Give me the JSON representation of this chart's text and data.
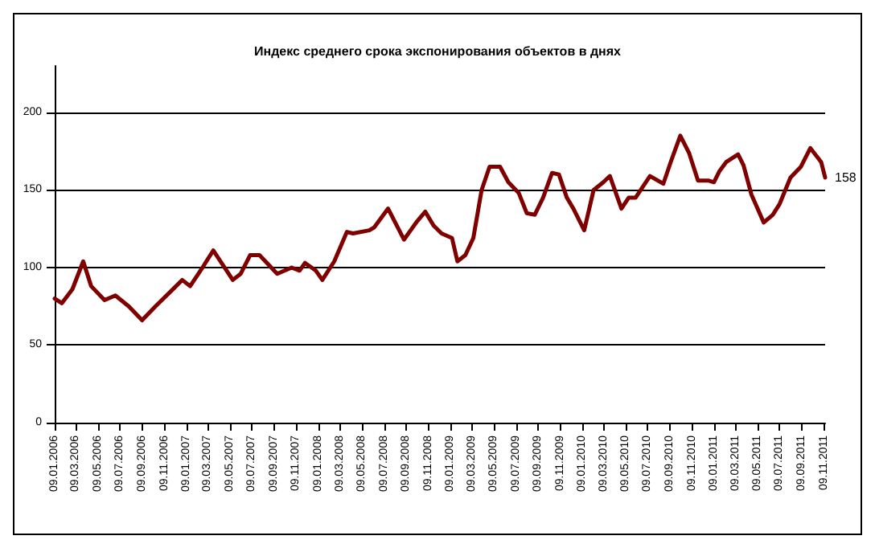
{
  "chart_data": {
    "type": "line",
    "title": "Индекс среднего срока экспонирования объектов в днях",
    "x": [
      "2006-01-09",
      "2006-01-29",
      "2006-02-27",
      "2006-03-29",
      "2006-04-20",
      "2006-05-27",
      "2006-06-26",
      "2006-08-02",
      "2006-09-08",
      "2006-10-15",
      "2006-11-28",
      "2006-12-28",
      "2007-01-19",
      "2007-02-25",
      "2007-03-24",
      "2007-05-17",
      "2007-06-08",
      "2007-07-04",
      "2007-07-30",
      "2007-09-17",
      "2007-10-27",
      "2007-11-18",
      "2007-12-03",
      "2008-01-02",
      "2008-01-20",
      "2008-02-22",
      "2008-03-28",
      "2008-04-14",
      "2008-05-29",
      "2008-06-12",
      "2008-07-20",
      "2008-09-02",
      "2008-10-09",
      "2008-10-31",
      "2008-11-23",
      "2008-12-15",
      "2009-01-13",
      "2009-01-28",
      "2009-02-19",
      "2009-03-13",
      "2009-04-05",
      "2009-04-27",
      "2009-05-26",
      "2009-06-18",
      "2009-07-17",
      "2009-08-08",
      "2009-08-30",
      "2009-09-22",
      "2009-10-17",
      "2009-11-05",
      "2009-11-27",
      "2009-12-15",
      "2010-01-14",
      "2010-02-09",
      "2010-03-08",
      "2010-03-26",
      "2010-04-27",
      "2010-05-17",
      "2010-06-05",
      "2010-07-15",
      "2010-08-21",
      "2010-09-12",
      "2010-10-07",
      "2010-10-31",
      "2010-11-25",
      "2010-12-25",
      "2011-01-08",
      "2011-01-23",
      "2011-02-11",
      "2011-03-16",
      "2011-03-31",
      "2011-04-22",
      "2011-05-26",
      "2011-06-20",
      "2011-07-09",
      "2011-08-08",
      "2011-09-06",
      "2011-10-02",
      "2011-11-01",
      "2011-11-12"
    ],
    "series": [
      {
        "color": "#800000",
        "values": [
          80,
          77,
          86,
          104,
          88,
          79,
          82,
          75,
          66,
          75,
          85,
          92,
          88,
          101,
          111,
          92,
          96,
          108,
          108,
          96,
          100,
          98,
          103,
          98,
          92,
          104,
          123,
          122,
          124,
          126,
          138,
          118,
          130,
          136,
          127,
          122,
          119,
          104,
          108,
          119,
          150,
          165,
          165,
          155,
          148,
          135,
          134,
          145,
          161,
          160,
          145,
          138,
          124,
          150,
          155,
          159,
          138,
          145,
          145,
          159,
          154,
          169,
          185,
          174,
          156,
          156,
          155,
          162,
          168,
          173,
          166,
          147,
          129,
          134,
          141,
          158,
          165,
          177,
          168,
          158
        ]
      }
    ],
    "xlim": [
      "2006-01-09",
      "2011-11-12"
    ],
    "xticks": [
      {
        "value": "2006-01-09",
        "label": "09.01.2006"
      },
      {
        "value": "2006-03-09",
        "label": "09.03.2006"
      },
      {
        "value": "2006-05-09",
        "label": "09.05.2006"
      },
      {
        "value": "2006-07-09",
        "label": "09.07.2006"
      },
      {
        "value": "2006-09-09",
        "label": "09.09.2006"
      },
      {
        "value": "2006-11-09",
        "label": "09.11.2006"
      },
      {
        "value": "2007-01-09",
        "label": "09.01.2007"
      },
      {
        "value": "2007-03-09",
        "label": "09.03.2007"
      },
      {
        "value": "2007-05-09",
        "label": "09.05.2007"
      },
      {
        "value": "2007-07-09",
        "label": "09.07.2007"
      },
      {
        "value": "2007-09-09",
        "label": "09.09.2007"
      },
      {
        "value": "2007-11-09",
        "label": "09.11.2007"
      },
      {
        "value": "2008-01-09",
        "label": "09.01.2008"
      },
      {
        "value": "2008-03-09",
        "label": "09.03.2008"
      },
      {
        "value": "2008-05-09",
        "label": "09.05.2008"
      },
      {
        "value": "2008-07-09",
        "label": "09.07.2008"
      },
      {
        "value": "2008-09-09",
        "label": "09.09.2008"
      },
      {
        "value": "2008-11-09",
        "label": "09.11.2008"
      },
      {
        "value": "2009-01-09",
        "label": "09.01.2009"
      },
      {
        "value": "2009-03-09",
        "label": "09.03.2009"
      },
      {
        "value": "2009-05-09",
        "label": "09.05.2009"
      },
      {
        "value": "2009-07-09",
        "label": "09.07.2009"
      },
      {
        "value": "2009-09-09",
        "label": "09.09.2009"
      },
      {
        "value": "2009-11-09",
        "label": "09.11.2009"
      },
      {
        "value": "2010-01-09",
        "label": "09.01.2010"
      },
      {
        "value": "2010-03-09",
        "label": "09.03.2010"
      },
      {
        "value": "2010-05-09",
        "label": "09.05.2010"
      },
      {
        "value": "2010-07-09",
        "label": "09.07.2010"
      },
      {
        "value": "2010-09-09",
        "label": "09.09.2010"
      },
      {
        "value": "2010-11-09",
        "label": "09.11.2010"
      },
      {
        "value": "2011-01-09",
        "label": "09.01.2011"
      },
      {
        "value": "2011-03-09",
        "label": "09.03.2011"
      },
      {
        "value": "2011-05-09",
        "label": "09.05.2011"
      },
      {
        "value": "2011-07-09",
        "label": "09.07.2011"
      },
      {
        "value": "2011-09-09",
        "label": "09.09.2011"
      },
      {
        "value": "2011-11-09",
        "label": "09.11.2011"
      }
    ],
    "ylim": [
      0,
      230
    ],
    "yticks": [
      0,
      50,
      100,
      150,
      200
    ],
    "grid": "y",
    "marker": "none",
    "line_style": "solid",
    "annotations": [
      {
        "text": "158",
        "x": "2011-11-12",
        "y": 158
      }
    ]
  }
}
